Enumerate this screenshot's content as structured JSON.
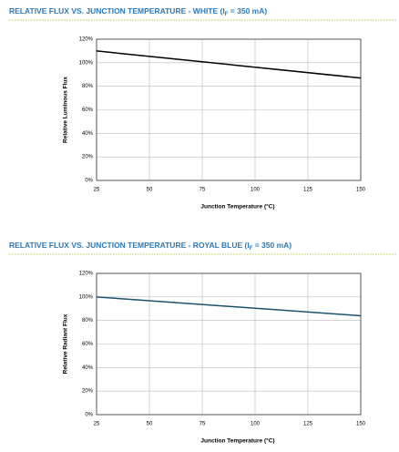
{
  "chart_data": [
    {
      "type": "line",
      "title": "RELATIVE FLUX VS. JUNCTION TEMPERATURE - WHITE (I",
      "title_subscript": "F",
      "title_end": " = 350 mA)",
      "x_label": "Junction Temperature (°C)",
      "y_label": "Relative Luminous Flux",
      "xlim": [
        25,
        150
      ],
      "xticks": [
        25,
        50,
        75,
        100,
        125,
        150
      ],
      "ylim": [
        0,
        120
      ],
      "yticks": [
        {
          "value": 0,
          "label": "0%"
        },
        {
          "value": 20,
          "label": "20%"
        },
        {
          "value": 40,
          "label": "40%"
        },
        {
          "value": 60,
          "label": "60%"
        },
        {
          "value": 80,
          "label": "80%"
        },
        {
          "value": 100,
          "label": "100%"
        },
        {
          "value": 120,
          "label": "120%"
        }
      ],
      "grid": true,
      "series": [
        {
          "color": "#000000",
          "x": [
            25,
            150
          ],
          "values": [
            110,
            87
          ]
        }
      ]
    },
    {
      "type": "line",
      "title": "RELATIVE FLUX VS. JUNCTION TEMPERATURE - ROYAL BLUE (I",
      "title_subscript": "F",
      "title_end": " = 350 mA)",
      "x_label": "Junction Temperature (°C)",
      "y_label": "Relative Radiant Flux",
      "xlim": [
        25,
        150
      ],
      "xticks": [
        25,
        50,
        75,
        100,
        125,
        150
      ],
      "ylim": [
        0,
        120
      ],
      "yticks": [
        {
          "value": 0,
          "label": "0%"
        },
        {
          "value": 20,
          "label": "20%"
        },
        {
          "value": 40,
          "label": "40%"
        },
        {
          "value": 60,
          "label": "60%"
        },
        {
          "value": 80,
          "label": "80%"
        },
        {
          "value": 100,
          "label": "100%"
        },
        {
          "value": 120,
          "label": "120%"
        }
      ],
      "grid": true,
      "series": [
        {
          "color": "#1d4f6e",
          "x": [
            25,
            150
          ],
          "values": [
            100,
            84
          ]
        }
      ]
    }
  ]
}
